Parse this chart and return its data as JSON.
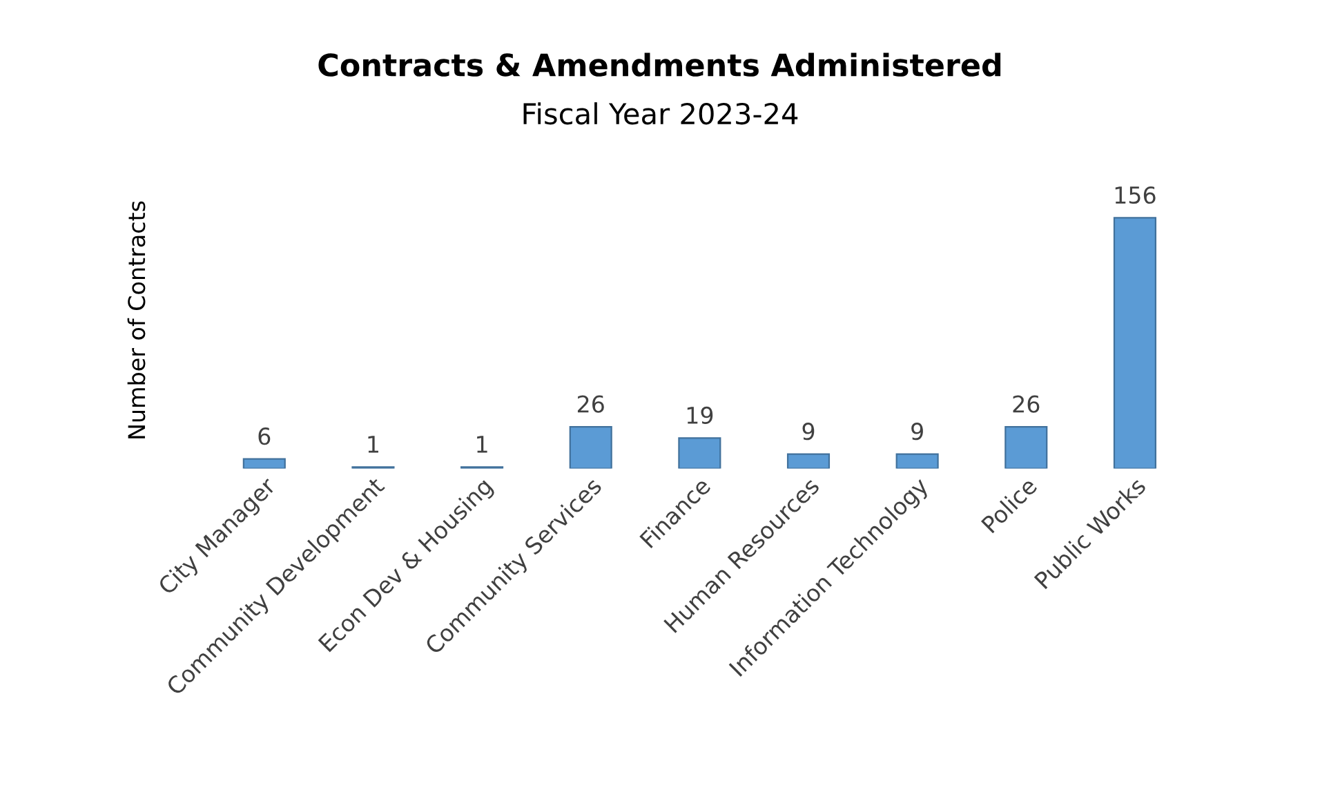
{
  "chart_data": {
    "type": "bar",
    "title": "Contracts & Amendments Administered",
    "subtitle": "Fiscal Year 2023-24",
    "ylabel": "Number of Contracts",
    "categories": [
      "City Manager",
      "Community Development",
      "Econ Dev & Housing",
      "Community Services",
      "Finance",
      "Human Resources",
      "Information Technology",
      "Police",
      "Public Works"
    ],
    "values": [
      6,
      1,
      1,
      26,
      19,
      9,
      9,
      26,
      156
    ],
    "color": "#5b9bd5",
    "data_labels": true,
    "tick_labels": "x",
    "grid": false,
    "legend": false
  }
}
